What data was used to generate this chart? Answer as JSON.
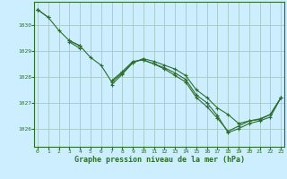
{
  "background_color": "#cceeff",
  "grid_color": "#aacccc",
  "line_color": "#2d6e2d",
  "marker_color": "#2d6e2d",
  "xlabel": "Graphe pression niveau de la mer (hPa)",
  "xlabel_color": "#2d6e2d",
  "ylabel_ticks": [
    1026,
    1027,
    1028,
    1029,
    1030
  ],
  "xticks": [
    0,
    1,
    2,
    3,
    4,
    5,
    6,
    7,
    8,
    9,
    10,
    11,
    12,
    13,
    14,
    15,
    16,
    17,
    18,
    19,
    20,
    21,
    22,
    23
  ],
  "ylim": [
    1025.3,
    1030.9
  ],
  "xlim": [
    -0.3,
    23.3
  ],
  "series": [
    [
      1030.6,
      1030.3,
      null,
      1029.4,
      1029.2,
      null,
      null,
      1027.7,
      1028.1,
      1028.55,
      1028.7,
      null,
      null,
      null,
      null,
      null,
      null,
      null,
      null,
      null,
      null,
      null,
      null,
      null
    ],
    [
      1030.6,
      1030.3,
      1029.8,
      1029.4,
      1029.2,
      1028.75,
      1028.45,
      1027.8,
      1028.15,
      1028.55,
      1028.7,
      1028.6,
      1028.45,
      1028.3,
      1028.05,
      1027.5,
      1027.2,
      1026.8,
      1026.55,
      1026.2,
      1026.3,
      1026.35,
      1026.55,
      1027.2
    ],
    [
      1030.6,
      null,
      null,
      1029.35,
      1029.1,
      null,
      null,
      1027.85,
      1028.2,
      1028.6,
      1028.65,
      1028.5,
      1028.35,
      1028.15,
      1027.9,
      1027.3,
      1027.0,
      1026.5,
      1025.85,
      1026.0,
      1026.2,
      1026.3,
      1026.45,
      1027.2
    ],
    [
      1030.6,
      null,
      null,
      null,
      null,
      null,
      null,
      null,
      null,
      null,
      1028.65,
      1028.5,
      1028.3,
      1028.05,
      1027.8,
      1027.2,
      1026.85,
      1026.4,
      1025.9,
      1026.1,
      1026.3,
      1026.38,
      1026.55,
      1027.2
    ]
  ]
}
